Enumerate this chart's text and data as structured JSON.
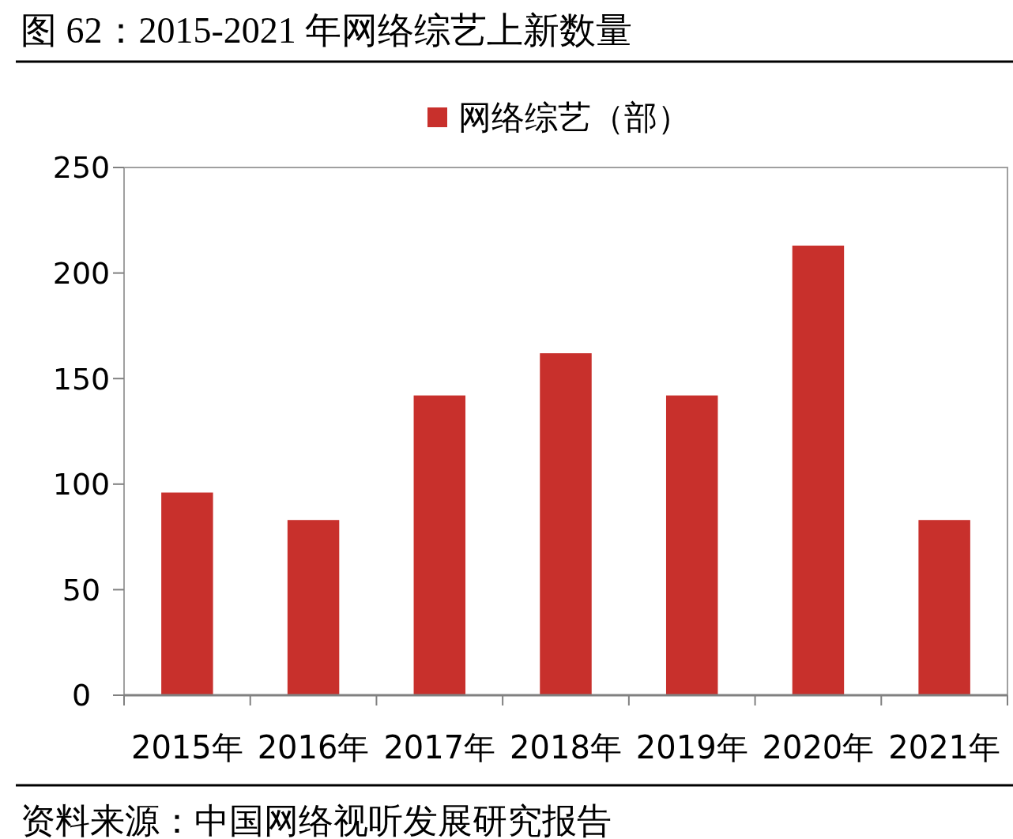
{
  "chart_data": {
    "type": "bar",
    "title": "图 62：2015-2021 年网络综艺上新数量",
    "categories": [
      "2015年",
      "2016年",
      "2017年",
      "2018年",
      "2019年",
      "2020年",
      "2021年"
    ],
    "series": [
      {
        "name": "网络综艺（部）",
        "color": "#c8302c",
        "values": [
          96,
          83,
          142,
          162,
          142,
          213,
          83
        ]
      }
    ],
    "ylim": [
      0,
      250
    ],
    "yticks": [
      0,
      50,
      100,
      150,
      200,
      250
    ],
    "grid": false,
    "legend": "top",
    "annotations": [
      "资料来源：中国网络视听发展研究报告"
    ]
  }
}
